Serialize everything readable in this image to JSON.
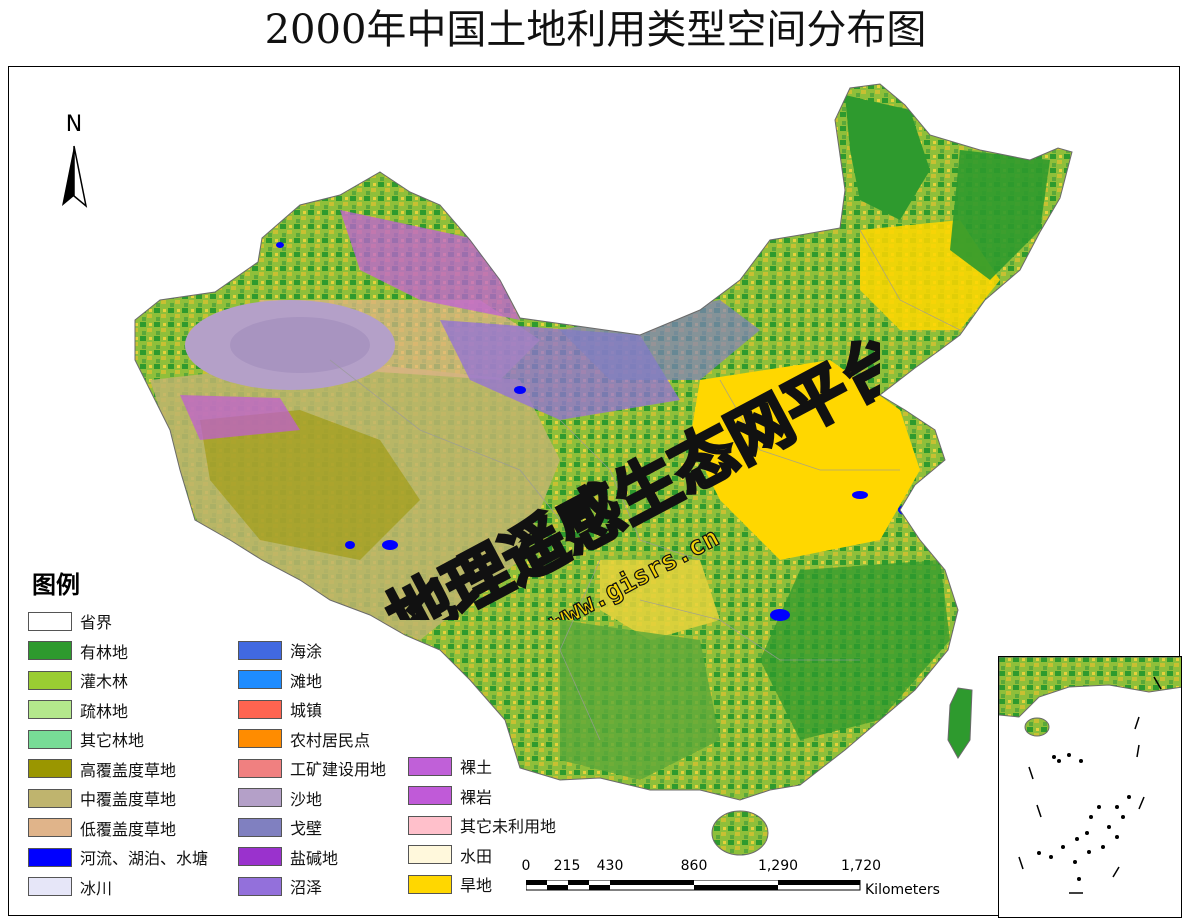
{
  "title": "2000年中国土地利用类型空间分布图",
  "north_label": "N",
  "legend": {
    "title": "图例",
    "items": [
      {
        "label": "省界",
        "color": "#ffffff"
      },
      {
        "label": "有林地",
        "color": "#2e9a2e"
      },
      {
        "label": "灌木林",
        "color": "#9acd32"
      },
      {
        "label": "疏林地",
        "color": "#b4e88c"
      },
      {
        "label": "其它林地",
        "color": "#78dc96"
      },
      {
        "label": "高覆盖度草地",
        "color": "#9a9600"
      },
      {
        "label": "中覆盖度草地",
        "color": "#bfb46e"
      },
      {
        "label": "低覆盖度草地",
        "color": "#e0b48a"
      },
      {
        "label": "河流、湖泊、水塘",
        "color": "#0000ff"
      },
      {
        "label": "冰川",
        "color": "#e6e6f8"
      },
      {
        "label": "海涂",
        "color": "#4169e1"
      },
      {
        "label": "滩地",
        "color": "#1e8cff"
      },
      {
        "label": "城镇",
        "color": "#ff6450"
      },
      {
        "label": "农村居民点",
        "color": "#ff8c00"
      },
      {
        "label": "工矿建设用地",
        "color": "#f08080"
      },
      {
        "label": "沙地",
        "color": "#b4a0c8"
      },
      {
        "label": "戈壁",
        "color": "#8080c0"
      },
      {
        "label": "盐碱地",
        "color": "#9a32cd"
      },
      {
        "label": "沼泽",
        "color": "#9370db"
      },
      {
        "label": "裸土",
        "color": "#c060d8"
      },
      {
        "label": "裸岩",
        "color": "#c05ad8"
      },
      {
        "label": "其它未利用地",
        "color": "#ffc0cb"
      },
      {
        "label": "水田",
        "color": "#fff8dc"
      },
      {
        "label": "旱地",
        "color": "#ffd700"
      }
    ]
  },
  "scale_bar": {
    "ticks": [
      "0",
      "215",
      "430",
      "860",
      "1,290",
      "1,720"
    ],
    "unit": "Kilometers"
  },
  "watermark": {
    "text": "地理遥感生态网平台",
    "url": "www.gisrs.cn"
  }
}
